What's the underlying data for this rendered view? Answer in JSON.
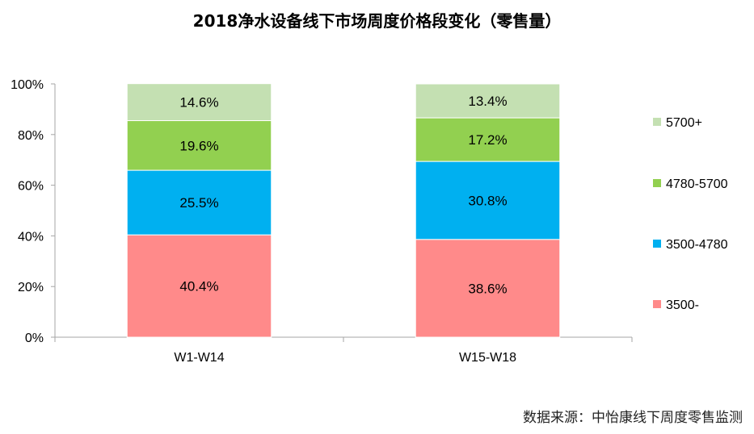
{
  "chart_data": {
    "type": "bar",
    "stacked": true,
    "title": "2018净水设备线下市场周度价格段变化（零售量）",
    "categories": [
      "W1-W14",
      "W15-W18"
    ],
    "series": [
      {
        "name": "3500-",
        "values": [
          40.4,
          38.6
        ],
        "labels": [
          "40.4%",
          "38.6%"
        ],
        "color": "#FF8A8A"
      },
      {
        "name": "3500-4780",
        "values": [
          25.5,
          30.8
        ],
        "labels": [
          "25.5%",
          "30.8%"
        ],
        "color": "#00B0F0"
      },
      {
        "name": "4780-5700",
        "values": [
          19.6,
          17.2
        ],
        "labels": [
          "19.6%",
          "17.2%"
        ],
        "color": "#92D050"
      },
      {
        "name": "5700+",
        "values": [
          14.6,
          13.4
        ],
        "labels": [
          "14.6%",
          "13.4%"
        ],
        "color": "#C4E0B2"
      }
    ],
    "ylim": [
      0,
      100
    ],
    "yticks": [
      "0%",
      "20%",
      "40%",
      "60%",
      "80%",
      "100%"
    ],
    "xlabel": "",
    "ylabel": "",
    "grid": false,
    "legend": "right",
    "legend_order": [
      "5700+",
      "4780-5700",
      "3500-4780",
      "3500-"
    ]
  },
  "source": "数据来源：中怡康线下周度零售监测"
}
